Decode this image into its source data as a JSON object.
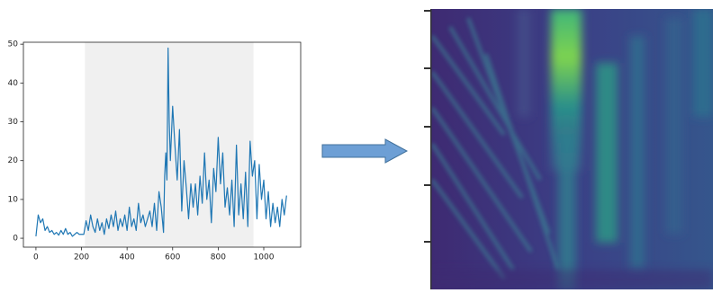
{
  "chart_data": {
    "type": "line",
    "x": [
      0,
      10,
      20,
      30,
      40,
      50,
      60,
      70,
      80,
      90,
      100,
      110,
      120,
      130,
      140,
      150,
      160,
      170,
      180,
      190,
      200,
      210,
      220,
      230,
      240,
      250,
      260,
      270,
      280,
      290,
      300,
      310,
      320,
      330,
      340,
      350,
      360,
      370,
      380,
      390,
      400,
      410,
      420,
      430,
      440,
      450,
      460,
      470,
      480,
      490,
      500,
      510,
      520,
      530,
      540,
      550,
      560,
      565,
      570,
      575,
      580,
      585,
      590,
      600,
      610,
      620,
      630,
      640,
      650,
      660,
      670,
      680,
      690,
      700,
      710,
      720,
      730,
      740,
      750,
      760,
      770,
      780,
      790,
      800,
      810,
      820,
      830,
      840,
      850,
      860,
      870,
      880,
      890,
      900,
      910,
      920,
      930,
      940,
      950,
      960,
      970,
      980,
      990,
      1000,
      1010,
      1020,
      1030,
      1040,
      1050,
      1060,
      1070,
      1080,
      1090,
      1100
    ],
    "series": [
      {
        "color": "#1f77b4",
        "values": [
          0.5,
          6,
          4,
          5,
          2,
          3,
          1.5,
          2,
          1,
          1.5,
          0.8,
          2,
          1,
          2.5,
          1,
          1.5,
          0.5,
          1,
          1.5,
          1,
          1,
          1,
          4.5,
          2,
          6,
          3,
          1.5,
          5,
          2,
          4,
          1,
          5,
          2.5,
          6,
          3,
          7,
          2,
          5,
          3,
          6,
          2,
          8,
          3,
          5,
          2,
          9,
          4,
          6,
          3,
          5,
          7,
          3,
          9,
          2,
          12,
          8,
          1.5,
          16,
          22,
          15,
          49,
          30,
          20,
          34,
          24,
          15,
          28,
          7,
          20,
          13,
          5,
          14,
          8,
          14,
          6,
          16,
          9,
          22,
          10,
          15,
          4,
          18,
          12,
          26,
          14,
          22,
          8,
          13,
          6,
          15,
          3,
          24,
          6,
          14,
          5,
          17,
          3,
          25,
          16,
          20,
          5,
          19,
          10,
          15,
          5,
          12,
          3,
          9,
          4,
          8,
          3,
          10,
          6,
          11
        ]
      }
    ],
    "shaded_span": [
      215,
      955
    ],
    "span_color": "#f0f0f0",
    "xlim": [
      -55,
      1162
    ],
    "ylim": [
      -2.3,
      50.5
    ],
    "xticks": [
      0,
      200,
      400,
      600,
      800,
      1000
    ],
    "yticks": [
      0,
      10,
      20,
      30,
      40,
      50
    ]
  }
}
